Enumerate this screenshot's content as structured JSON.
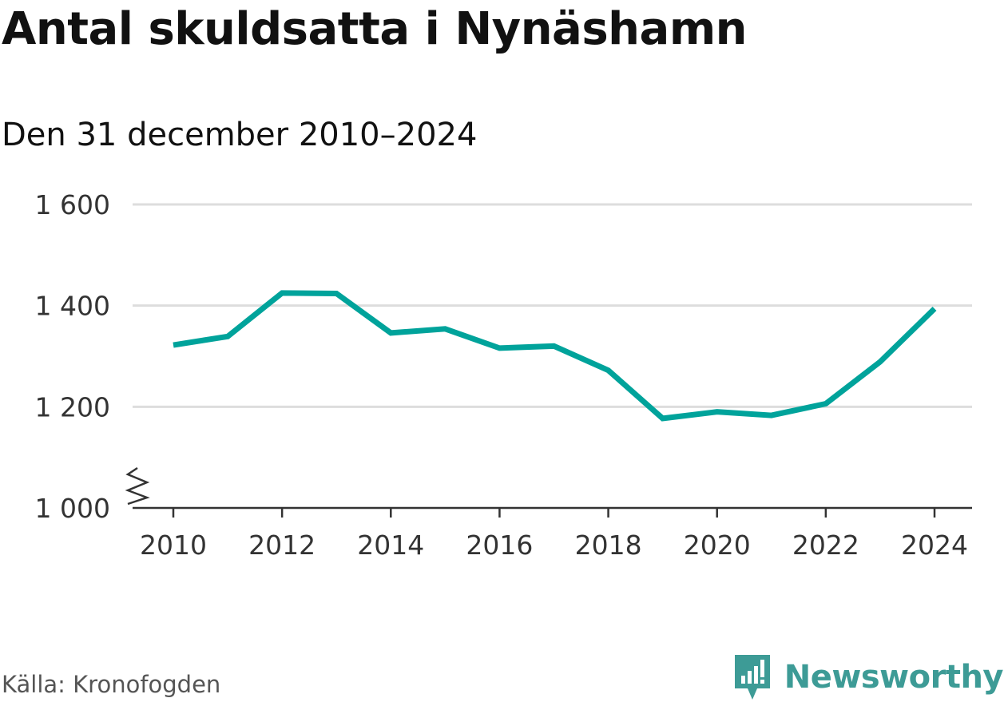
{
  "header": {
    "title": "Antal skuldsatta i Nynäshamn",
    "subtitle": "Den 31 december 2010–2024"
  },
  "footer": {
    "source": "Källa: Kronofogden",
    "brand": "Newsworthy"
  },
  "colors": {
    "line": "#00a39b",
    "grid": "#dddddd",
    "axis": "#333333",
    "brand": "#3d9b96"
  },
  "chart_data": {
    "type": "line",
    "title": "Antal skuldsatta i Nynäshamn",
    "subtitle": "Den 31 december 2010–2024",
    "xlabel": "",
    "ylabel": "",
    "x": [
      2010,
      2011,
      2012,
      2013,
      2014,
      2015,
      2016,
      2017,
      2018,
      2019,
      2020,
      2021,
      2022,
      2023,
      2024
    ],
    "series": [
      {
        "name": "Antal skuldsatta",
        "values": [
          1322,
          1339,
          1425,
          1424,
          1346,
          1354,
          1316,
          1320,
          1272,
          1177,
          1190,
          1183,
          1206,
          1289,
          1394
        ]
      }
    ],
    "ylim": [
      1000,
      1600
    ],
    "yticks": [
      1000,
      1200,
      1400,
      1600
    ],
    "ytick_labels": [
      "1 000",
      "1 200",
      "1 400",
      "1 600"
    ],
    "xticks": [
      2010,
      2012,
      2014,
      2016,
      2018,
      2020,
      2022,
      2024
    ],
    "xtick_labels": [
      "2010",
      "2012",
      "2014",
      "2016",
      "2018",
      "2020",
      "2022",
      "2024"
    ],
    "grid": true,
    "axis_break": true,
    "legend": "none"
  }
}
